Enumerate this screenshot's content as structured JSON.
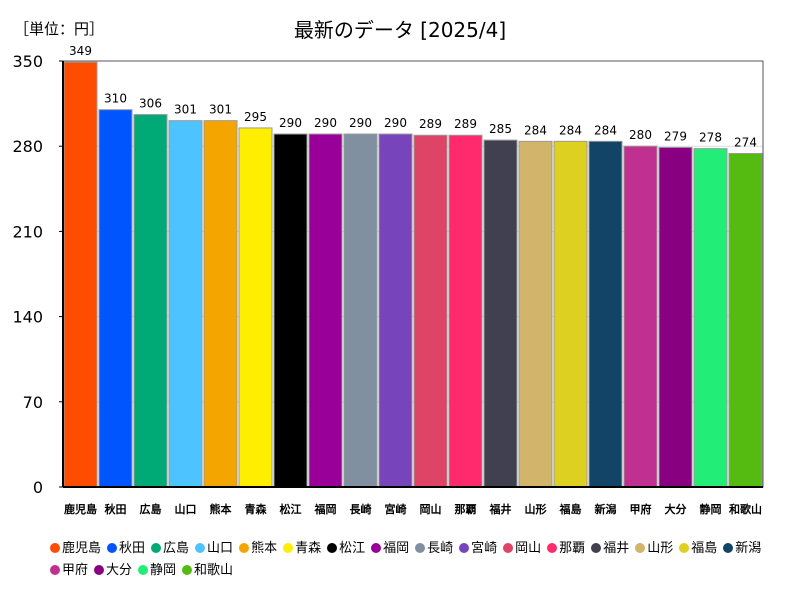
{
  "unit_label": "［単位：円］",
  "chart_data": {
    "type": "bar",
    "title": "最新のデータ [2025/4]",
    "xlabel": "",
    "ylabel": "円",
    "ylim": [
      0,
      350
    ],
    "yticks": [
      0,
      70,
      140,
      210,
      280,
      350
    ],
    "grid": false,
    "legend_position": "bottom",
    "categories": [
      "鹿児島",
      "秋田",
      "広島",
      "山口",
      "熊本",
      "青森",
      "松江",
      "福岡",
      "長崎",
      "宮崎",
      "岡山",
      "那覇",
      "福井",
      "山形",
      "福島",
      "新潟",
      "甲府",
      "大分",
      "静岡",
      "和歌山"
    ],
    "values": [
      349,
      310,
      306,
      301,
      301,
      295,
      290,
      290,
      290,
      290,
      289,
      289,
      285,
      284,
      284,
      284,
      280,
      279,
      278,
      274
    ],
    "colors": [
      "#ff4d00",
      "#0055ff",
      "#00aa77",
      "#4dc3ff",
      "#f5a500",
      "#ffee00",
      "#000000",
      "#990099",
      "#8090a0",
      "#7744bb",
      "#dd4466",
      "#ff2a6d",
      "#404050",
      "#d2b46a",
      "#ddd020",
      "#114466",
      "#c03090",
      "#880080",
      "#22ee77",
      "#55bb11"
    ]
  }
}
